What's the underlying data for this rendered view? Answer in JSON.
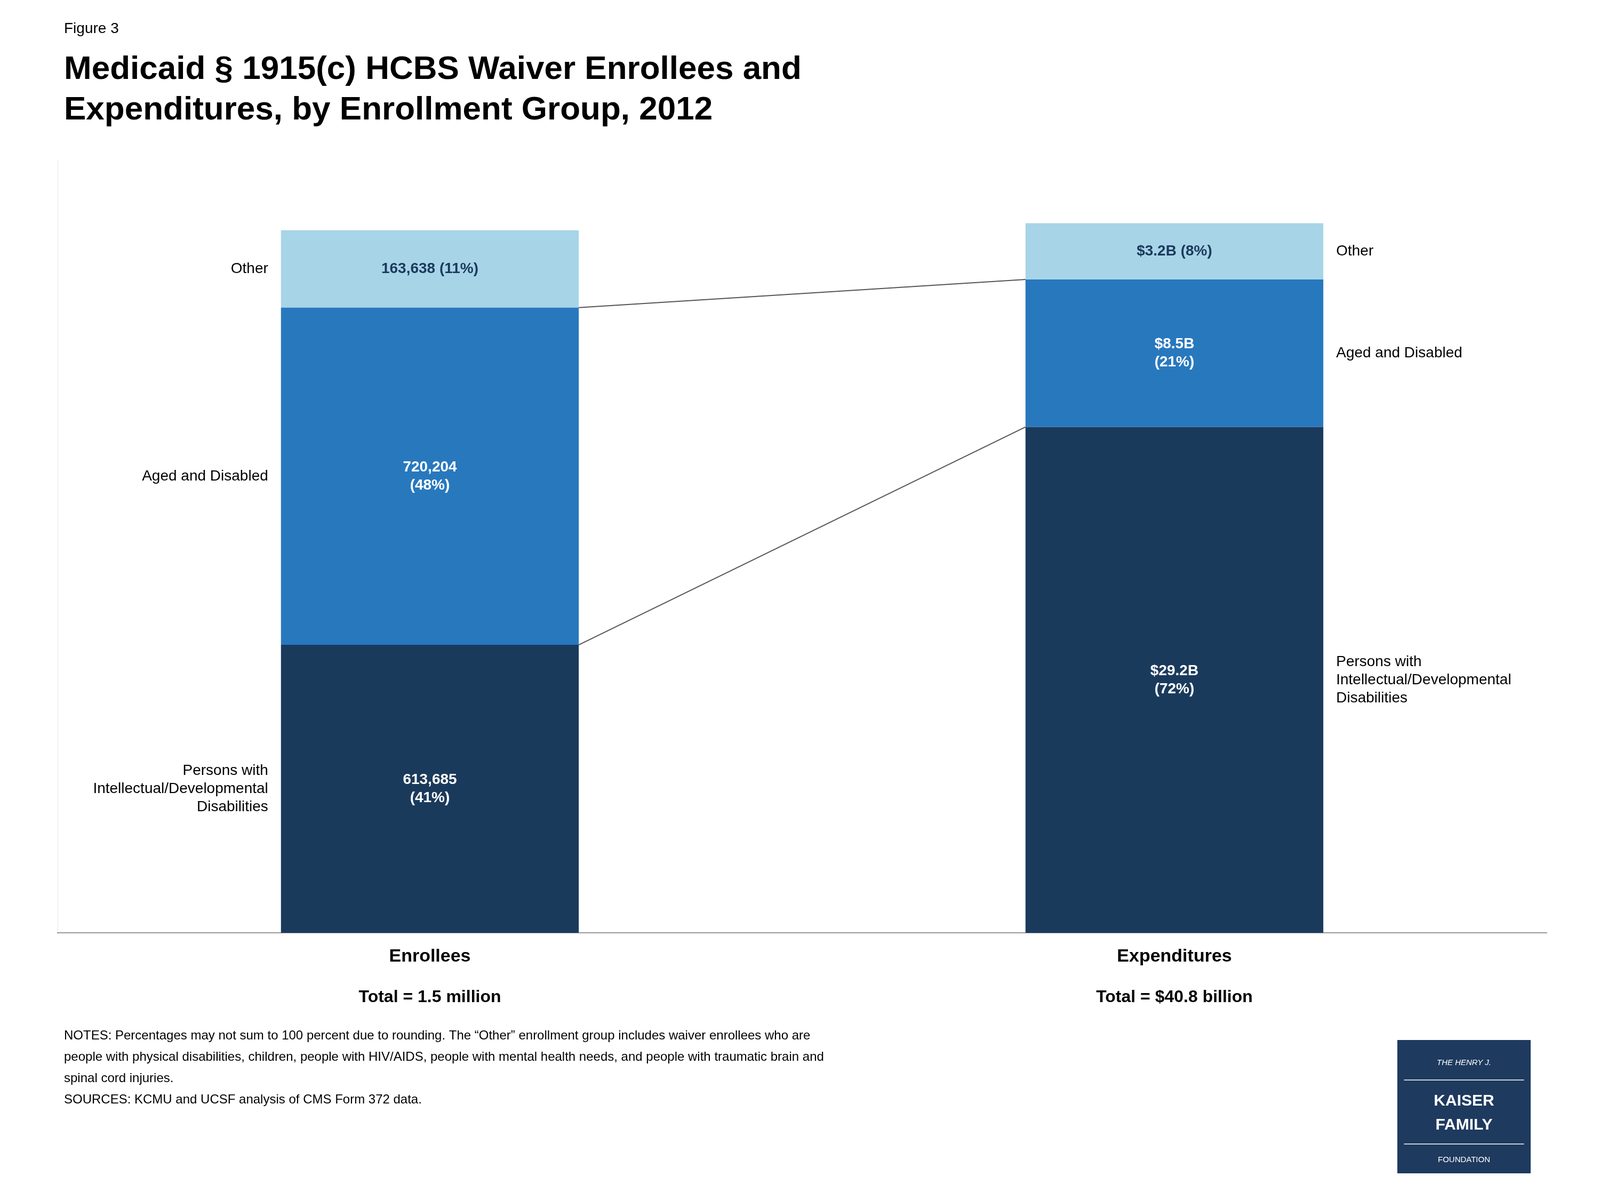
{
  "chart_data": {
    "type": "bar",
    "stacked": true,
    "figure_label": "Figure 3",
    "title": [
      "Medicaid § 1915(c) HCBS Waiver Enrollees and",
      "Expenditures, by Enrollment Group, 2012"
    ],
    "categories": [
      "Enrollees",
      "Expenditures"
    ],
    "series": [
      {
        "name": "Persons with\nIntellectual/Developmental\nDisabilities",
        "color": "#1a3a5c",
        "values": [
          41,
          72
        ],
        "value_labels": [
          "613,685\n(41%)",
          "$29.2B\n(72%)"
        ]
      },
      {
        "name": "Aged and Disabled",
        "color": "#2878be",
        "values": [
          48,
          21
        ],
        "value_labels": [
          "720,204\n(48%)",
          "$8.5B\n(21%)"
        ]
      },
      {
        "name": "Other",
        "color": "#a8d4e8",
        "values": [
          11,
          8
        ],
        "value_labels": [
          "163,638 (11%)",
          "$3.2B (8%)"
        ]
      }
    ],
    "data_labels": true,
    "ylim": [
      0,
      110
    ],
    "grid": false,
    "tick_labels": "x",
    "totals": [
      "Total = 1.5 million",
      "Total = $40.8 billion"
    ],
    "notes": [
      "NOTES: Percentages may not sum to 100 percent due to rounding. The “Other” enrollment group includes waiver enrollees who are",
      "people with physical disabilities, children, people with HIV/AIDS, people with mental health needs, and people with traumatic brain and",
      "spinal cord injuries.",
      "SOURCES: KCMU and UCSF analysis of CMS Form 372 data."
    ],
    "logo": [
      "THE HENRY J.",
      "KAISER",
      "FAMILY",
      "FOUNDATION"
    ]
  }
}
